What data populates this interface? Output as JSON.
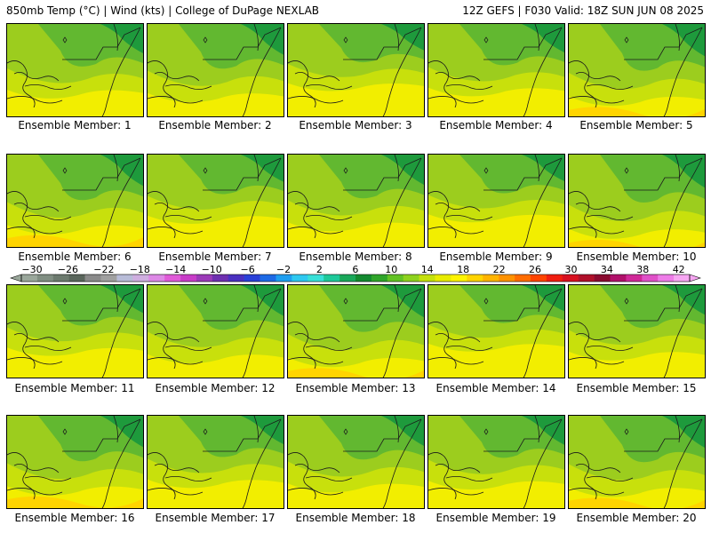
{
  "header": {
    "left": "850mb Temp (°C) | Wind (kts) | College of DuPage NEXLAB",
    "right": "12Z GEFS | F030 Valid: 18Z SUN JUN 08 2025"
  },
  "members": [
    {
      "label": "Ensemble Member: 1",
      "warmth": 0.45
    },
    {
      "label": "Ensemble Member: 2",
      "warmth": 0.5
    },
    {
      "label": "Ensemble Member: 3",
      "warmth": 0.35
    },
    {
      "label": "Ensemble Member: 4",
      "warmth": 0.42
    },
    {
      "label": "Ensemble Member: 5",
      "warmth": 0.55
    },
    {
      "label": "Ensemble Member: 6",
      "warmth": 0.52
    },
    {
      "label": "Ensemble Member: 7",
      "warmth": 0.38
    },
    {
      "label": "Ensemble Member: 8",
      "warmth": 0.48
    },
    {
      "label": "Ensemble Member: 9",
      "warmth": 0.36
    },
    {
      "label": "Ensemble Member: 10",
      "warmth": 0.58
    },
    {
      "label": "Ensemble Member: 11",
      "warmth": 0.4
    },
    {
      "label": "Ensemble Member: 12",
      "warmth": 0.5
    },
    {
      "label": "Ensemble Member: 13",
      "warmth": 0.55
    },
    {
      "label": "Ensemble Member: 14",
      "warmth": 0.34
    },
    {
      "label": "Ensemble Member: 15",
      "warmth": 0.46
    },
    {
      "label": "Ensemble Member: 16",
      "warmth": 0.52
    },
    {
      "label": "Ensemble Member: 17",
      "warmth": 0.42
    },
    {
      "label": "Ensemble Member: 18",
      "warmth": 0.48
    },
    {
      "label": "Ensemble Member: 19",
      "warmth": 0.44
    },
    {
      "label": "Ensemble Member: 20",
      "warmth": 0.54
    }
  ],
  "colorbar": {
    "ticks": [
      "-30",
      "-26",
      "-22",
      "-18",
      "-14",
      "-10",
      "-6",
      "-2",
      "2",
      "6",
      "10",
      "14",
      "18",
      "22",
      "26",
      "30",
      "34",
      "38",
      "42"
    ],
    "colors": [
      "#9aa79b",
      "#808e82",
      "#6c7a6e",
      "#5a665c",
      "#8a8a8a",
      "#a0a0a0",
      "#b8bcd8",
      "#cfaee0",
      "#dd88e6",
      "#e05ad8",
      "#c83cc8",
      "#9b3ab8",
      "#6e2fb0",
      "#4a30c0",
      "#2a40d8",
      "#1e6ae6",
      "#1f9ef0",
      "#2ec8f0",
      "#38e0d8",
      "#1ec99a",
      "#1aa85a",
      "#148a30",
      "#2fa52a",
      "#62c224",
      "#8ed21e",
      "#c4e00c",
      "#e8ec00",
      "#fff400",
      "#ffd400",
      "#ffb400",
      "#ff9200",
      "#ff6c00",
      "#ff4400",
      "#f01e10",
      "#d81020",
      "#b0102a",
      "#8a0a30",
      "#b0106a",
      "#d02898",
      "#e050c8",
      "#ee7ce8",
      "#f6a6f2"
    ]
  },
  "palette": {
    "dark_green": "#1e9a3c",
    "mid_green": "#62b830",
    "light_green": "#9ccd1e",
    "lime": "#c8e00c",
    "yellow": "#f2ee00",
    "gold": "#ffd400"
  }
}
